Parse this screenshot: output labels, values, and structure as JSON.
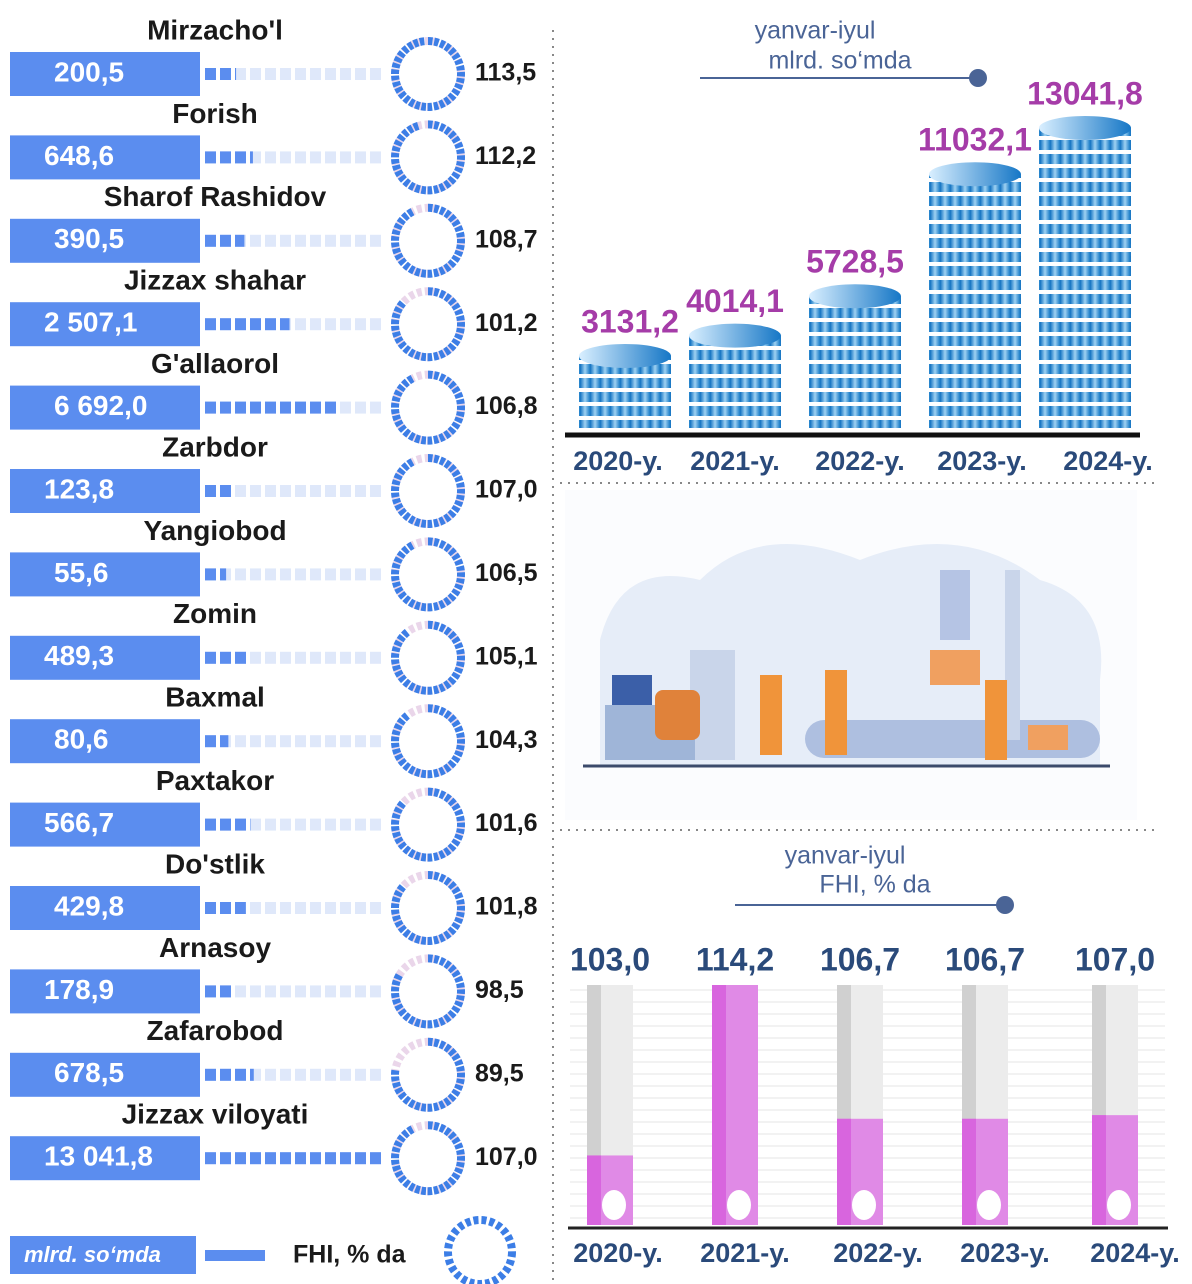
{
  "chart_data": [
    {
      "type": "district-rings",
      "categories": [
        "Mirzacho'l",
        "Forish",
        "Sharof Rashidov",
        "Jizzax shahar",
        "G'allaorol",
        "Zarbdor",
        "Yangiobod",
        "Zomin",
        "Baxmal",
        "Paxtakor",
        "Do'stlik",
        "Arnasoy",
        "Zafarobod",
        "Jizzax viloyati"
      ],
      "series": [
        {
          "name": "mlrd. so‘mda",
          "color": "#5b8def",
          "values": [
            200.5,
            648.6,
            390.5,
            2507.1,
            6692.0,
            123.8,
            55.6,
            489.3,
            80.6,
            566.7,
            429.8,
            178.9,
            678.5,
            13041.8
          ],
          "value_labels": [
            "200,5",
            "648,6",
            "390,5",
            "2 507,1",
            "6 692,0",
            "123,8",
            "55,6",
            "489,3",
            "80,6",
            "566,7",
            "429,8",
            "178,9",
            "678,5",
            "13 041,8"
          ]
        },
        {
          "name": "FHI, % da",
          "color": "#3c7ee6",
          "values": [
            113.5,
            112.2,
            108.7,
            101.2,
            106.8,
            107.0,
            106.5,
            105.1,
            104.3,
            101.6,
            101.8,
            98.5,
            89.5,
            107.0
          ],
          "value_labels": [
            "113,5",
            "112,2",
            "108,7",
            "101,2",
            "106,8",
            "107,0",
            "106,5",
            "105,1",
            "104,3",
            "101,6",
            "101,8",
            "98,5",
            "89,5",
            "107,0"
          ]
        }
      ]
    },
    {
      "type": "cylinder",
      "subtitle": [
        "yanvar-iyul",
        "mlrd. so‘mda"
      ],
      "categories": [
        "2020-y.",
        "2021-y.",
        "2022-y.",
        "2023-y.",
        "2024-y."
      ],
      "values": [
        3131.2,
        4014.1,
        5728.5,
        11032.1,
        13041.8
      ],
      "value_labels": [
        "3131,2",
        "4014,1",
        "5728,5",
        "11032,1",
        "13041,8"
      ],
      "color": "#2a8fd8"
    },
    {
      "type": "column",
      "subtitle": [
        "yanvar-iyul",
        "FHI, % da"
      ],
      "categories": [
        "2020-y.",
        "2021-y.",
        "2022-y.",
        "2023-y.",
        "2024-y."
      ],
      "values": [
        103.0,
        114.2,
        106.7,
        106.7,
        107.0
      ],
      "value_labels": [
        "103,0",
        "114,2",
        "106,7",
        "106,7",
        "107,0"
      ],
      "color": "#e08ae6"
    }
  ]
}
